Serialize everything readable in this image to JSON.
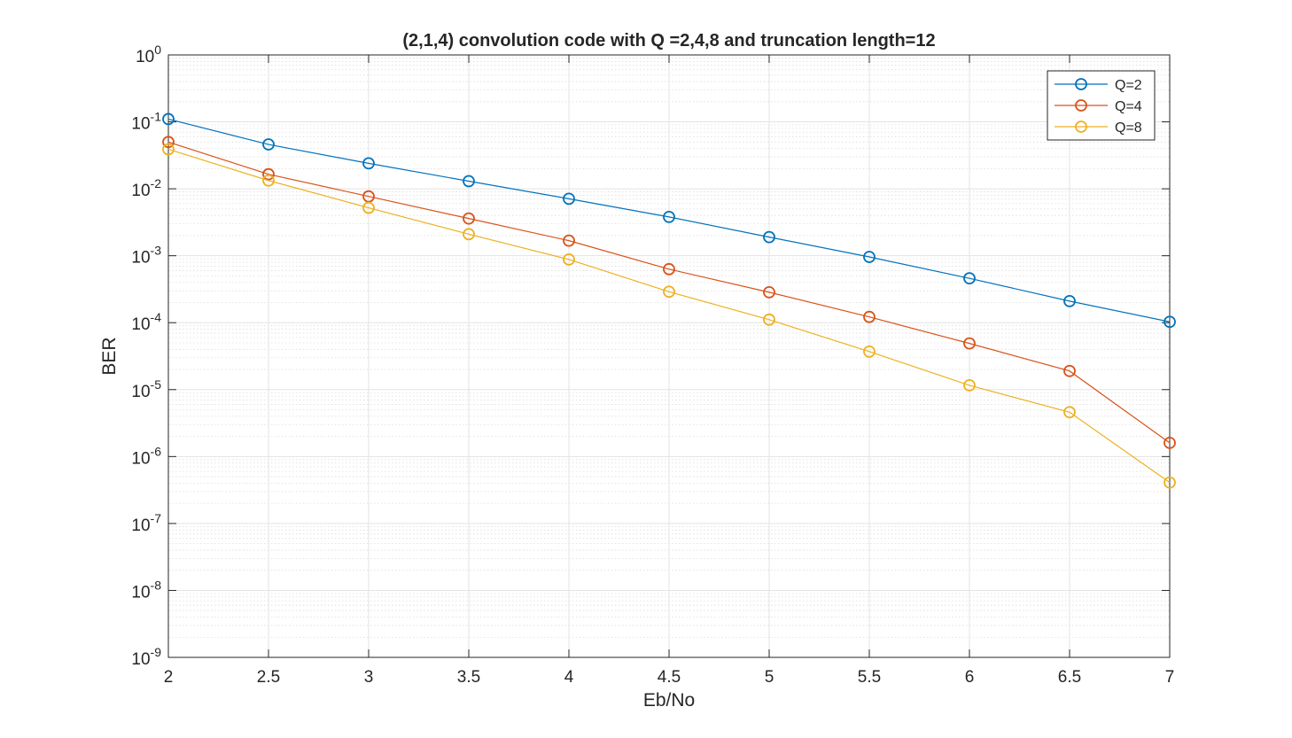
{
  "chart_data": {
    "type": "line",
    "title": "(2,1,4) convolution code with Q =2,4,8 and truncation length=12",
    "xlabel": "Eb/No",
    "ylabel": "BER",
    "x": [
      2,
      2.5,
      3,
      3.5,
      4,
      4.5,
      5,
      5.5,
      6,
      6.5,
      7
    ],
    "xlim": [
      2,
      7
    ],
    "ylim": [
      1e-09,
      1
    ],
    "yscale": "log",
    "grid": true,
    "minor_grid": true,
    "legend_position": "top-right",
    "x_tick_labels": [
      "2",
      "2.5",
      "3",
      "3.5",
      "4",
      "4.5",
      "5",
      "5.5",
      "6",
      "6.5",
      "7"
    ],
    "y_ticks": [
      {
        "base": "10",
        "exp": "-9"
      },
      {
        "base": "10",
        "exp": "-8"
      },
      {
        "base": "10",
        "exp": "-7"
      },
      {
        "base": "10",
        "exp": "-6"
      },
      {
        "base": "10",
        "exp": "-5"
      },
      {
        "base": "10",
        "exp": "-4"
      },
      {
        "base": "10",
        "exp": "-3"
      },
      {
        "base": "10",
        "exp": "-2"
      },
      {
        "base": "10",
        "exp": "-1"
      },
      {
        "base": "10",
        "exp": "0"
      }
    ],
    "series": [
      {
        "name": "Q=2",
        "color": "#0072BD",
        "marker": "circle",
        "values": [
          0.11,
          0.046,
          0.024,
          0.013,
          0.0071,
          0.0038,
          0.0019,
          0.00096,
          0.00046,
          0.00021,
          0.000103
        ]
      },
      {
        "name": "Q=4",
        "color": "#D95319",
        "marker": "circle",
        "values": [
          0.05,
          0.0165,
          0.0077,
          0.0036,
          0.00168,
          0.00063,
          0.000285,
          0.000122,
          4.9e-05,
          1.9e-05,
          1.6e-06
        ]
      },
      {
        "name": "Q=8",
        "color": "#EDB120",
        "marker": "circle",
        "values": [
          0.039,
          0.0133,
          0.0052,
          0.0021,
          0.00088,
          0.00029,
          0.000111,
          3.7e-05,
          1.16e-05,
          4.6e-06,
          4.1e-07
        ]
      }
    ]
  }
}
